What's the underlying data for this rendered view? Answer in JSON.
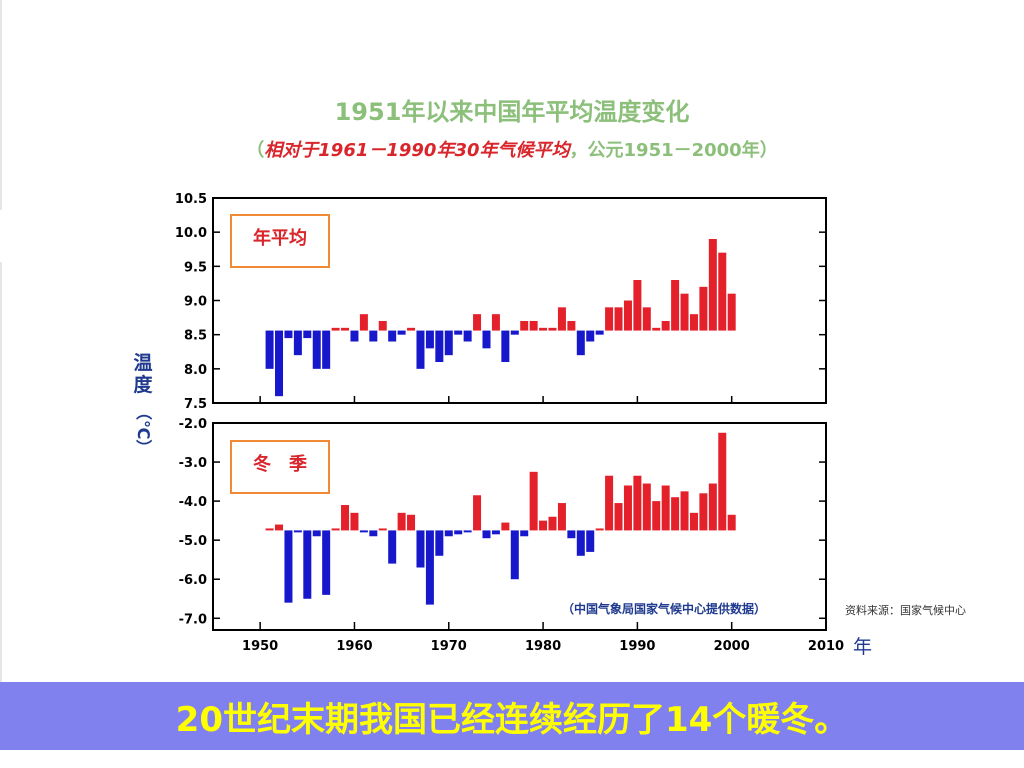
{
  "title": "1951年以来中国年平均温度变化",
  "subtitle": {
    "open": "（",
    "italic": "相对于1961－1990年30年气候平均",
    "sep": "，",
    "plain": "公元1951－2000年）"
  },
  "y_label": {
    "char1": "温",
    "char2": "度",
    "unit": "（℃）"
  },
  "x_unit": "年",
  "source_note": "（中国气象局国家气候中心提供数据）",
  "source_right": "资料来源：国家气候中心",
  "banner": "20世纪末期我国已经连续经历了14个暖冬。",
  "colors": {
    "positive": "#e4202a",
    "negative": "#1717cc",
    "title": "#8bbf7a",
    "box_border": "#f08a35",
    "banner_bg": "#8080ee",
    "banner_text": "#ffff00"
  },
  "chart_data": [
    {
      "type": "bar",
      "label": "年平均",
      "baseline": 8.56,
      "ylim": [
        7.5,
        10.5
      ],
      "y_ticks": [
        "7.5",
        "8.0",
        "8.5",
        "9.0",
        "9.5",
        "10.0",
        "10.5"
      ],
      "x": [
        1951,
        1952,
        1953,
        1954,
        1955,
        1956,
        1957,
        1958,
        1959,
        1960,
        1961,
        1962,
        1963,
        1964,
        1965,
        1966,
        1967,
        1968,
        1969,
        1970,
        1971,
        1972,
        1973,
        1974,
        1975,
        1976,
        1977,
        1978,
        1979,
        1980,
        1981,
        1982,
        1983,
        1984,
        1985,
        1986,
        1987,
        1988,
        1989,
        1990,
        1991,
        1992,
        1993,
        1994,
        1995,
        1996,
        1997,
        1998,
        1999,
        2000
      ],
      "values": [
        8.0,
        7.6,
        8.45,
        8.2,
        8.45,
        8.0,
        8.0,
        8.6,
        8.6,
        8.4,
        8.8,
        8.4,
        8.7,
        8.4,
        8.5,
        8.6,
        8.0,
        8.3,
        8.1,
        8.2,
        8.5,
        8.4,
        8.8,
        8.3,
        8.8,
        8.1,
        8.5,
        8.7,
        8.7,
        8.6,
        8.6,
        8.9,
        8.7,
        8.2,
        8.4,
        8.5,
        8.9,
        8.9,
        9.0,
        9.3,
        8.9,
        8.6,
        8.7,
        9.3,
        9.1,
        8.8,
        9.2,
        9.9,
        9.7,
        9.1
      ]
    },
    {
      "type": "bar",
      "label": "冬　季",
      "baseline": -4.75,
      "ylim": [
        -7.3,
        -2.0
      ],
      "y_ticks": [
        "-7.0",
        "-6.0",
        "-5.0",
        "-4.0",
        "-3.0",
        "-2.0"
      ],
      "x": [
        1951,
        1952,
        1953,
        1954,
        1955,
        1956,
        1957,
        1958,
        1959,
        1960,
        1961,
        1962,
        1963,
        1964,
        1965,
        1966,
        1967,
        1968,
        1969,
        1970,
        1971,
        1972,
        1973,
        1974,
        1975,
        1976,
        1977,
        1978,
        1979,
        1980,
        1981,
        1982,
        1983,
        1984,
        1985,
        1986,
        1987,
        1988,
        1989,
        1990,
        1991,
        1992,
        1993,
        1994,
        1995,
        1996,
        1997,
        1998,
        1999,
        2000
      ],
      "values": [
        -4.7,
        -4.6,
        -6.6,
        -4.8,
        -6.5,
        -4.9,
        -6.4,
        -4.7,
        -4.1,
        -4.3,
        -4.8,
        -4.9,
        -4.7,
        -5.6,
        -4.3,
        -4.35,
        -5.7,
        -6.65,
        -5.4,
        -4.9,
        -4.85,
        -4.8,
        -3.85,
        -4.95,
        -4.85,
        -4.55,
        -6.0,
        -4.9,
        -3.25,
        -4.5,
        -4.4,
        -4.05,
        -4.95,
        -5.4,
        -5.3,
        -4.7,
        -3.35,
        -4.05,
        -3.6,
        -3.35,
        -3.55,
        -4.0,
        -3.6,
        -3.9,
        -3.75,
        -4.3,
        -3.8,
        -3.55,
        -2.25,
        -4.35
      ],
      "x_ticks": [
        "1950",
        "1960",
        "1970",
        "1980",
        "1990",
        "2000",
        "2010"
      ]
    }
  ]
}
